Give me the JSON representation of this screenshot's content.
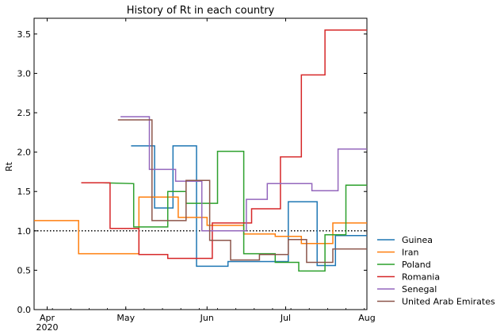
{
  "chart_data": {
    "type": "line",
    "title": "History of Rt in each country",
    "xlabel": "",
    "ylabel": "Rt",
    "xlim": [
      "2020-03-27",
      "2020-08-01"
    ],
    "ylim": [
      0,
      3.7
    ],
    "yticks": [
      0.0,
      0.5,
      1.0,
      1.5,
      2.0,
      2.5,
      3.0,
      3.5
    ],
    "ytick_labels": [
      "0.0",
      "0.5",
      "1.0",
      "1.5",
      "2.0",
      "2.5",
      "3.0",
      "3.5"
    ],
    "xticks": [
      "2020-04-01",
      "2020-05-01",
      "2020-06-01",
      "2020-07-01",
      "2020-08-01"
    ],
    "xtick_labels": [
      "Apr",
      "May",
      "Jun",
      "Jul",
      "Aug"
    ],
    "xtick_sublabel": "2020",
    "reference_line": {
      "y": 1.0,
      "style": "dotted",
      "color": "#000000"
    },
    "legend_position": "lower-right-outside",
    "series": [
      {
        "name": "Guinea",
        "color": "#1f77b4",
        "x": [
          "2020-05-03",
          "2020-05-12",
          "2020-05-12",
          "2020-05-19",
          "2020-05-19",
          "2020-05-26",
          "2020-05-26",
          "2020-05-28",
          "2020-05-28",
          "2020-06-08",
          "2020-06-08",
          "2020-06-09",
          "2020-06-09",
          "2020-07-02",
          "2020-07-02",
          "2020-07-13",
          "2020-07-13",
          "2020-07-20",
          "2020-07-20",
          "2020-08-01"
        ],
        "y": [
          2.08,
          2.08,
          1.29,
          1.29,
          2.08,
          2.08,
          2.08,
          2.08,
          0.55,
          0.55,
          0.55,
          0.55,
          0.61,
          0.61,
          1.37,
          1.37,
          0.56,
          0.56,
          0.94,
          0.94
        ]
      },
      {
        "name": "Iran",
        "color": "#ff7f0e",
        "x": [
          "2020-03-27",
          "2020-04-13",
          "2020-04-13",
          "2020-05-06",
          "2020-05-06",
          "2020-05-21",
          "2020-05-21",
          "2020-06-01",
          "2020-06-01",
          "2020-06-15",
          "2020-06-15",
          "2020-06-27",
          "2020-06-27",
          "2020-07-07",
          "2020-07-07",
          "2020-07-19",
          "2020-07-19",
          "2020-08-01"
        ],
        "y": [
          1.13,
          1.13,
          0.71,
          0.71,
          1.43,
          1.43,
          1.17,
          1.17,
          1.07,
          1.07,
          0.96,
          0.96,
          0.93,
          0.93,
          0.84,
          0.84,
          1.1,
          1.1
        ]
      },
      {
        "name": "Poland",
        "color": "#2ca02c",
        "x": [
          "2020-04-22",
          "2020-05-04",
          "2020-05-04",
          "2020-05-17",
          "2020-05-17",
          "2020-05-24",
          "2020-05-24",
          "2020-06-05",
          "2020-06-05",
          "2020-06-15",
          "2020-06-15",
          "2020-06-27",
          "2020-06-27",
          "2020-07-06",
          "2020-07-06",
          "2020-07-16",
          "2020-07-16",
          "2020-07-24",
          "2020-07-24",
          "2020-08-01"
        ],
        "y": [
          1.61,
          1.6,
          1.05,
          1.05,
          1.5,
          1.5,
          1.35,
          1.35,
          2.01,
          2.01,
          0.71,
          0.71,
          0.6,
          0.6,
          0.49,
          0.49,
          0.95,
          0.95,
          1.58,
          1.58
        ]
      },
      {
        "name": "Romania",
        "color": "#d62728",
        "x": [
          "2020-04-14",
          "2020-04-25",
          "2020-04-25",
          "2020-05-06",
          "2020-05-06",
          "2020-05-17",
          "2020-05-17",
          "2020-06-03",
          "2020-06-03",
          "2020-06-18",
          "2020-06-18",
          "2020-06-29",
          "2020-06-29",
          "2020-07-07",
          "2020-07-07",
          "2020-07-16",
          "2020-07-16",
          "2020-08-01"
        ],
        "y": [
          1.61,
          1.61,
          1.03,
          1.03,
          0.7,
          0.7,
          0.65,
          0.65,
          1.1,
          1.1,
          1.28,
          1.28,
          1.94,
          1.94,
          2.98,
          2.98,
          3.55,
          3.55
        ]
      },
      {
        "name": "Senegal",
        "color": "#9467bd",
        "x": [
          "2020-04-29",
          "2020-05-10",
          "2020-05-10",
          "2020-05-20",
          "2020-05-20",
          "2020-05-30",
          "2020-05-30",
          "2020-06-16",
          "2020-06-16",
          "2020-06-24",
          "2020-06-24",
          "2020-07-11",
          "2020-07-11",
          "2020-07-21",
          "2020-07-21",
          "2020-08-01"
        ],
        "y": [
          2.45,
          2.45,
          1.78,
          1.78,
          1.63,
          1.63,
          1.0,
          1.0,
          1.4,
          1.4,
          1.6,
          1.6,
          1.51,
          1.51,
          2.04,
          2.04
        ]
      },
      {
        "name": "United Arab Emirates",
        "color": "#8c564b",
        "x": [
          "2020-04-28",
          "2020-05-11",
          "2020-05-11",
          "2020-05-24",
          "2020-05-24",
          "2020-06-02",
          "2020-06-02",
          "2020-06-10",
          "2020-06-10",
          "2020-06-21",
          "2020-06-21",
          "2020-07-02",
          "2020-07-02",
          "2020-07-09",
          "2020-07-09",
          "2020-07-19",
          "2020-07-19",
          "2020-08-01"
        ],
        "y": [
          2.41,
          2.41,
          1.13,
          1.13,
          1.64,
          1.64,
          0.88,
          0.88,
          0.63,
          0.63,
          0.7,
          0.7,
          0.89,
          0.89,
          0.6,
          0.6,
          0.77,
          0.77
        ]
      }
    ]
  }
}
